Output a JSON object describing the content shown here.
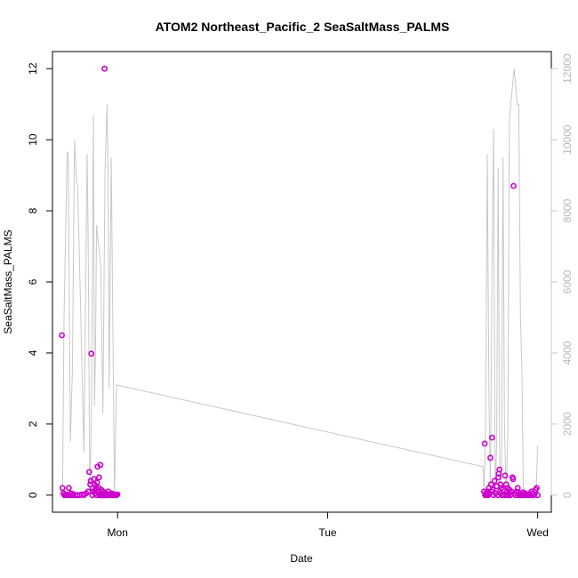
{
  "chart_data": {
    "type": "scatter",
    "title": "ATOM2 Northeast_Pacific_2 SeaSaltMass_PALMS",
    "xlabel": "Date",
    "ylabel": "SeaSaltMass_PALMS",
    "x_axis": {
      "unit": "day",
      "range": [
        -0.31,
        2.065
      ],
      "ticks": [
        {
          "value": 0,
          "label": "Mon"
        },
        {
          "value": 1,
          "label": "Tue"
        },
        {
          "value": 2,
          "label": "Wed"
        }
      ]
    },
    "y_axis_left": {
      "range": [
        -0.48,
        12.48
      ],
      "ticks": [
        {
          "value": 0,
          "label": "0"
        },
        {
          "value": 2,
          "label": "2"
        },
        {
          "value": 4,
          "label": "4"
        },
        {
          "value": 6,
          "label": "6"
        },
        {
          "value": 8,
          "label": "8"
        },
        {
          "value": 10,
          "label": "10"
        },
        {
          "value": 12,
          "label": "12"
        }
      ]
    },
    "y_axis_right": {
      "range": [
        -480,
        12480
      ],
      "color": "#c8c8c8",
      "ticks": [
        {
          "value": 0,
          "label": "0"
        },
        {
          "value": 2000,
          "label": "2000"
        },
        {
          "value": 4000,
          "label": "4000"
        },
        {
          "value": 6000,
          "label": "6000"
        },
        {
          "value": 8000,
          "label": "8000"
        },
        {
          "value": 10000,
          "label": "10000"
        },
        {
          "value": 12000,
          "label": "12000"
        }
      ]
    },
    "grid": false,
    "series": [
      {
        "kind": "points",
        "color": "#cc00cc",
        "axis": "left",
        "x": [
          -0.265,
          -0.262,
          -0.258,
          -0.253,
          -0.248,
          -0.245,
          -0.238,
          -0.232,
          -0.228,
          -0.222,
          -0.215,
          -0.21,
          -0.2,
          -0.19,
          -0.18,
          -0.17,
          -0.16,
          -0.15,
          -0.14,
          -0.135,
          -0.13,
          -0.128,
          -0.125,
          -0.12,
          -0.118,
          -0.115,
          -0.113,
          -0.11,
          -0.108,
          -0.105,
          -0.102,
          -0.1,
          -0.098,
          -0.095,
          -0.092,
          -0.09,
          -0.088,
          -0.085,
          -0.082,
          -0.08,
          -0.078,
          -0.075,
          -0.072,
          -0.07,
          -0.067,
          -0.065,
          -0.062,
          -0.06,
          -0.055,
          -0.05,
          -0.045,
          -0.04,
          -0.035,
          -0.03,
          -0.025,
          -0.02,
          -0.015,
          -0.01,
          -0.005,
          -0.001,
          1.745,
          1.748,
          1.75,
          1.753,
          1.755,
          1.76,
          1.763,
          1.765,
          1.768,
          1.77,
          1.775,
          1.778,
          1.78,
          1.783,
          1.785,
          1.79,
          1.795,
          1.8,
          1.805,
          1.81,
          1.813,
          1.815,
          1.818,
          1.82,
          1.823,
          1.825,
          1.828,
          1.83,
          1.835,
          1.84,
          1.845,
          1.85,
          1.853,
          1.855,
          1.858,
          1.86,
          1.863,
          1.865,
          1.87,
          1.875,
          1.88,
          1.883,
          1.885,
          1.89,
          1.895,
          1.9,
          1.905,
          1.91,
          1.915,
          1.92,
          1.925,
          1.93,
          1.935,
          1.94,
          1.945,
          1.95,
          1.955,
          1.96,
          1.965,
          1.97,
          1.975,
          1.98,
          1.985,
          1.99,
          1.995,
          2.0
        ],
        "y": [
          4.5,
          0.2,
          0.05,
          0.0,
          0.02,
          0.01,
          0.0,
          0.2,
          0.0,
          0.05,
          0.0,
          0.03,
          0.0,
          0.0,
          0.0,
          0.02,
          0.0,
          0.05,
          0.1,
          0.65,
          0.3,
          0.4,
          3.98,
          0.0,
          0.2,
          0.1,
          0.45,
          0.3,
          0.05,
          0.15,
          0.25,
          0.0,
          0.35,
          0.8,
          0.1,
          0.2,
          0.5,
          0.0,
          0.85,
          0.05,
          0.15,
          0.0,
          0.0,
          0.1,
          0.0,
          0.03,
          12.0,
          0.0,
          0.05,
          0.0,
          0.1,
          0.0,
          0.02,
          0.05,
          0.0,
          0.03,
          0.0,
          0.01,
          0.0,
          0.02,
          0.1,
          1.45,
          0.0,
          0.05,
          0.0,
          0.03,
          0.1,
          0.0,
          0.2,
          0.05,
          1.05,
          0.3,
          0.1,
          1.62,
          0.15,
          0.0,
          0.4,
          0.05,
          0.25,
          0.0,
          0.5,
          0.6,
          0.72,
          0.1,
          0.3,
          0.05,
          0.2,
          0.0,
          0.15,
          0.0,
          0.55,
          0.3,
          0.0,
          0.1,
          0.2,
          0.0,
          0.05,
          0.15,
          0.0,
          0.1,
          0.5,
          0.45,
          8.7,
          0.05,
          0.0,
          0.1,
          0.2,
          0.0,
          0.05,
          0.0,
          0.03,
          0.08,
          0.0,
          0.05,
          0.0,
          0.02,
          0.0,
          0.03,
          0.0,
          0.1,
          0.05,
          0.0,
          0.02,
          0.15,
          0.2,
          0.0
        ]
      },
      {
        "kind": "line",
        "color": "#c8c8c8",
        "axis": "right",
        "x": [
          -0.262,
          -0.255,
          -0.24,
          -0.235,
          -0.225,
          -0.215,
          -0.205,
          -0.195,
          -0.19,
          -0.175,
          -0.16,
          -0.145,
          -0.14,
          -0.132,
          -0.125,
          -0.12,
          -0.115,
          -0.11,
          -0.105,
          -0.1,
          -0.09,
          -0.08,
          -0.07,
          -0.06,
          -0.05,
          -0.045,
          -0.04,
          -0.03,
          -0.015,
          -0.005,
          1.74,
          1.745,
          1.752,
          1.76,
          1.768,
          1.775,
          1.782,
          1.79,
          1.798,
          1.805,
          1.812,
          1.82,
          1.828,
          1.835,
          1.842,
          1.85,
          1.858,
          1.865,
          1.872,
          1.88,
          1.888,
          1.895,
          1.902,
          1.91,
          1.918,
          1.925,
          1.932,
          1.94,
          1.948,
          1.955,
          1.962,
          1.97,
          1.978,
          1.985,
          1.992,
          2.0
        ],
        "y": [
          0,
          5000,
          9600,
          9650,
          1500,
          3500,
          10000,
          8800,
          8700,
          5000,
          1200,
          9600,
          7000,
          0,
          2000,
          6500,
          10700,
          2500,
          4000,
          7600,
          7000,
          6500,
          2300,
          9100,
          11000,
          9000,
          3000,
          9500,
          0,
          3100,
          800,
          0,
          2000,
          9600,
          3000,
          0,
          6000,
          10300,
          0,
          1500,
          9200,
          0,
          800,
          9500,
          2000,
          0,
          1700,
          10500,
          11000,
          11500,
          12000,
          11600,
          11000,
          11000,
          5000,
          3600,
          0,
          0,
          0,
          0,
          0,
          0,
          0,
          0,
          0,
          1400
        ]
      }
    ]
  }
}
